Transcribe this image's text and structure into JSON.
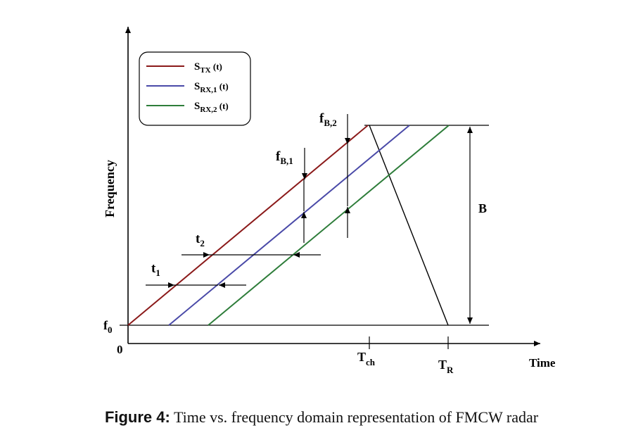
{
  "legend": {
    "items": [
      {
        "main": "S",
        "sub": "TX",
        "suffix": " (t)",
        "color": "#8b1a1a"
      },
      {
        "main": "S",
        "sub": "RX,1",
        "suffix": " (t)",
        "color": "#4a4aa8"
      },
      {
        "main": "S",
        "sub": "RX,2",
        "suffix": " (t)",
        "color": "#2e7d3a"
      }
    ]
  },
  "axes": {
    "y_label": "Frequency",
    "x_label": "Time",
    "origin_label": "0",
    "f0": {
      "main": "f",
      "sub": "0"
    },
    "tch": {
      "main": "T",
      "sub": "ch"
    },
    "tr": {
      "main": "T",
      "sub": "R"
    }
  },
  "annotations": {
    "t1": {
      "main": "t",
      "sub": "1"
    },
    "t2": {
      "main": "t",
      "sub": "2"
    },
    "fb1": {
      "main": "f",
      "sub": "B,1"
    },
    "fb2": {
      "main": "f",
      "sub": "B,2"
    },
    "bandwidth": "B"
  },
  "caption": {
    "label": "Figure 4:",
    "text": " Time vs. frequency domain representation of FMCW radar"
  }
}
